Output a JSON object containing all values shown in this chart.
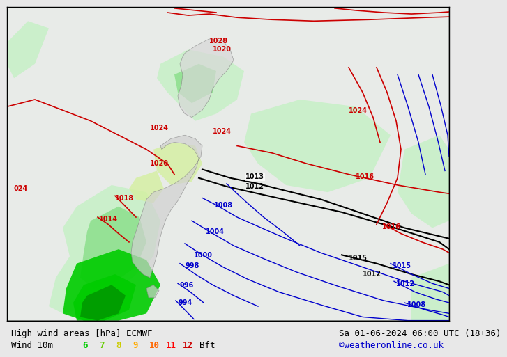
{
  "title_left": "High wind areas [hPa] ECMWF",
  "title_right": "Sa 01-06-2024 06:00 UTC (18+36)",
  "subtitle_left": "Wind 10m",
  "subtitle_right": "©weatheronline.co.uk",
  "wind_labels": [
    "6",
    "7",
    "8",
    "9",
    "10",
    "11",
    "12"
  ],
  "wind_colors": [
    "#00cc00",
    "#66cc00",
    "#cccc00",
    "#ffaa00",
    "#ff6600",
    "#ff0000",
    "#cc0000"
  ],
  "wind_label_suffix": " Bft",
  "bg_color": "#e8e8e8",
  "map_bg": "#f0f0f0",
  "title_fontsize": 9,
  "subtitle_fontsize": 9,
  "border_color": "#000000",
  "green_light": "#c8f0c8",
  "green_medium": "#90e090",
  "green_dark": "#00cc00",
  "green_very_dark": "#009900",
  "isobar_blue": "#0000cc",
  "isobar_red": "#cc0000",
  "isobar_black": "#000000",
  "label_fontsize": 7
}
